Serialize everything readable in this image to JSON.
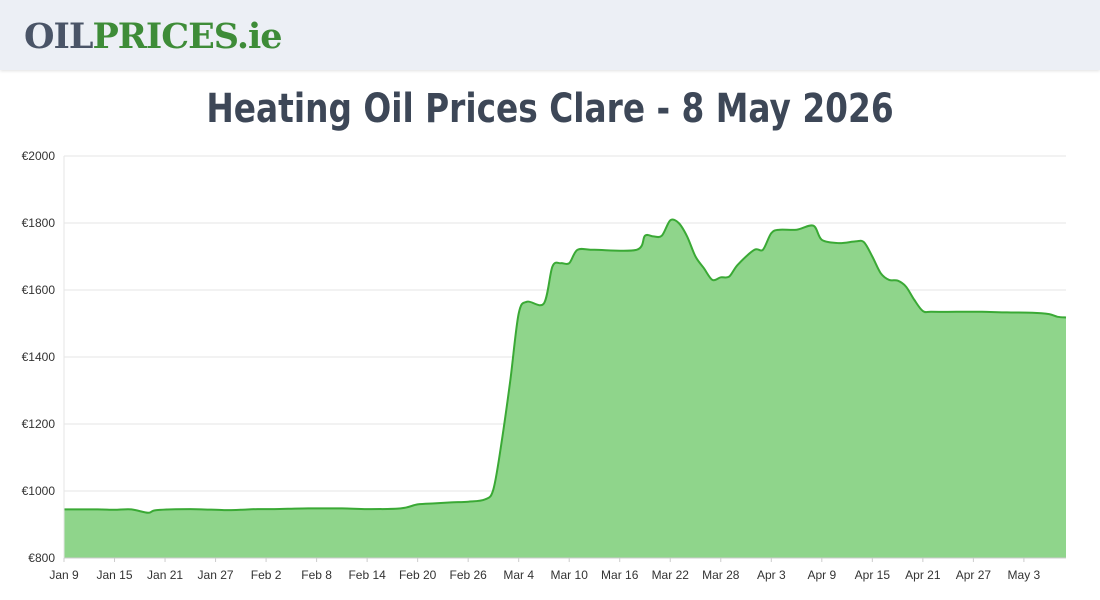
{
  "header": {
    "logo_part1": "OIL",
    "logo_part2": "PRICES",
    "logo_part3": ".ie"
  },
  "page_title": "Heating Oil Prices Clare - 8 May 2026",
  "colors": {
    "line": "#3aa935",
    "fill": "#8fd58b",
    "grid": "#e5e5e5",
    "axis": "#cccccc"
  },
  "chart_data": {
    "type": "area",
    "title": "Heating Oil Prices Clare - 8 May 2026",
    "xlabel": "",
    "ylabel": "",
    "ylim": [
      800,
      2000
    ],
    "y_ticks": [
      "€2000",
      "€1800",
      "€1600",
      "€1400",
      "€1200",
      "€1000",
      "€800"
    ],
    "y_tick_values": [
      2000,
      1800,
      1600,
      1400,
      1200,
      1000,
      800
    ],
    "x_tick_labels": [
      "Jan 9",
      "Jan 15",
      "Jan 21",
      "Jan 27",
      "Feb 2",
      "Feb 8",
      "Feb 14",
      "Feb 20",
      "Feb 26",
      "Mar 4",
      "Mar 10",
      "Mar 16",
      "Mar 22",
      "Mar 28",
      "Apr 3",
      "Apr 9",
      "Apr 15",
      "Apr 21",
      "Apr 27",
      "May 3"
    ],
    "x_start": "Jan 9",
    "x_end": "May 8",
    "grid": true,
    "legend": "none",
    "series": [
      {
        "points": [
          [
            "Jan 9",
            945
          ],
          [
            "Jan 13",
            945
          ],
          [
            "Jan 15",
            944
          ],
          [
            "Jan 17",
            945
          ],
          [
            "Jan 19",
            935
          ],
          [
            "Jan 20",
            943
          ],
          [
            "Jan 24",
            946
          ],
          [
            "Jan 28",
            943
          ],
          [
            "Jan 30",
            944
          ],
          [
            "Feb 1",
            946
          ],
          [
            "Feb 3",
            946
          ],
          [
            "Feb 7",
            948
          ],
          [
            "Feb 11",
            948
          ],
          [
            "Feb 14",
            946
          ],
          [
            "Feb 18",
            948
          ],
          [
            "Feb 20",
            960
          ],
          [
            "Feb 22",
            963
          ],
          [
            "Feb 24",
            966
          ],
          [
            "Feb 26",
            968
          ],
          [
            "Feb 28",
            975
          ],
          [
            "Mar 1",
            1005
          ],
          [
            "Mar 2",
            1150
          ],
          [
            "Mar 3",
            1330
          ],
          [
            "Mar 4",
            1530
          ],
          [
            "Mar 5",
            1565
          ],
          [
            "Mar 7",
            1560
          ],
          [
            "Mar 8",
            1670
          ],
          [
            "Mar 9",
            1680
          ],
          [
            "Mar 10",
            1680
          ],
          [
            "Mar 11",
            1720
          ],
          [
            "Mar 13",
            1720
          ],
          [
            "Mar 18",
            1720
          ],
          [
            "Mar 19",
            1762
          ],
          [
            "Mar 20",
            1760
          ],
          [
            "Mar 21",
            1762
          ],
          [
            "Mar 22",
            1808
          ],
          [
            "Mar 23",
            1800
          ],
          [
            "Mar 24",
            1760
          ],
          [
            "Mar 25",
            1700
          ],
          [
            "Mar 26",
            1665
          ],
          [
            "Mar 27",
            1630
          ],
          [
            "Mar 28",
            1638
          ],
          [
            "Mar 29",
            1640
          ],
          [
            "Mar 30",
            1675
          ],
          [
            "Apr 1",
            1720
          ],
          [
            "Apr 2",
            1720
          ],
          [
            "Apr 3",
            1770
          ],
          [
            "Apr 4",
            1780
          ],
          [
            "Apr 6",
            1780
          ],
          [
            "Apr 8",
            1792
          ],
          [
            "Apr 9",
            1750
          ],
          [
            "Apr 11",
            1740
          ],
          [
            "Apr 13",
            1745
          ],
          [
            "Apr 14",
            1743
          ],
          [
            "Apr 15",
            1700
          ],
          [
            "Apr 16",
            1650
          ],
          [
            "Apr 17",
            1630
          ],
          [
            "Apr 18",
            1628
          ],
          [
            "Apr 19",
            1610
          ],
          [
            "Apr 20",
            1570
          ],
          [
            "Apr 21",
            1537
          ],
          [
            "Apr 22",
            1535
          ],
          [
            "Apr 25",
            1535
          ],
          [
            "Apr 28",
            1535
          ],
          [
            "May 1",
            1533
          ],
          [
            "May 4",
            1532
          ],
          [
            "May 6",
            1528
          ],
          [
            "May 7",
            1520
          ],
          [
            "May 8",
            1518
          ]
        ]
      }
    ]
  }
}
